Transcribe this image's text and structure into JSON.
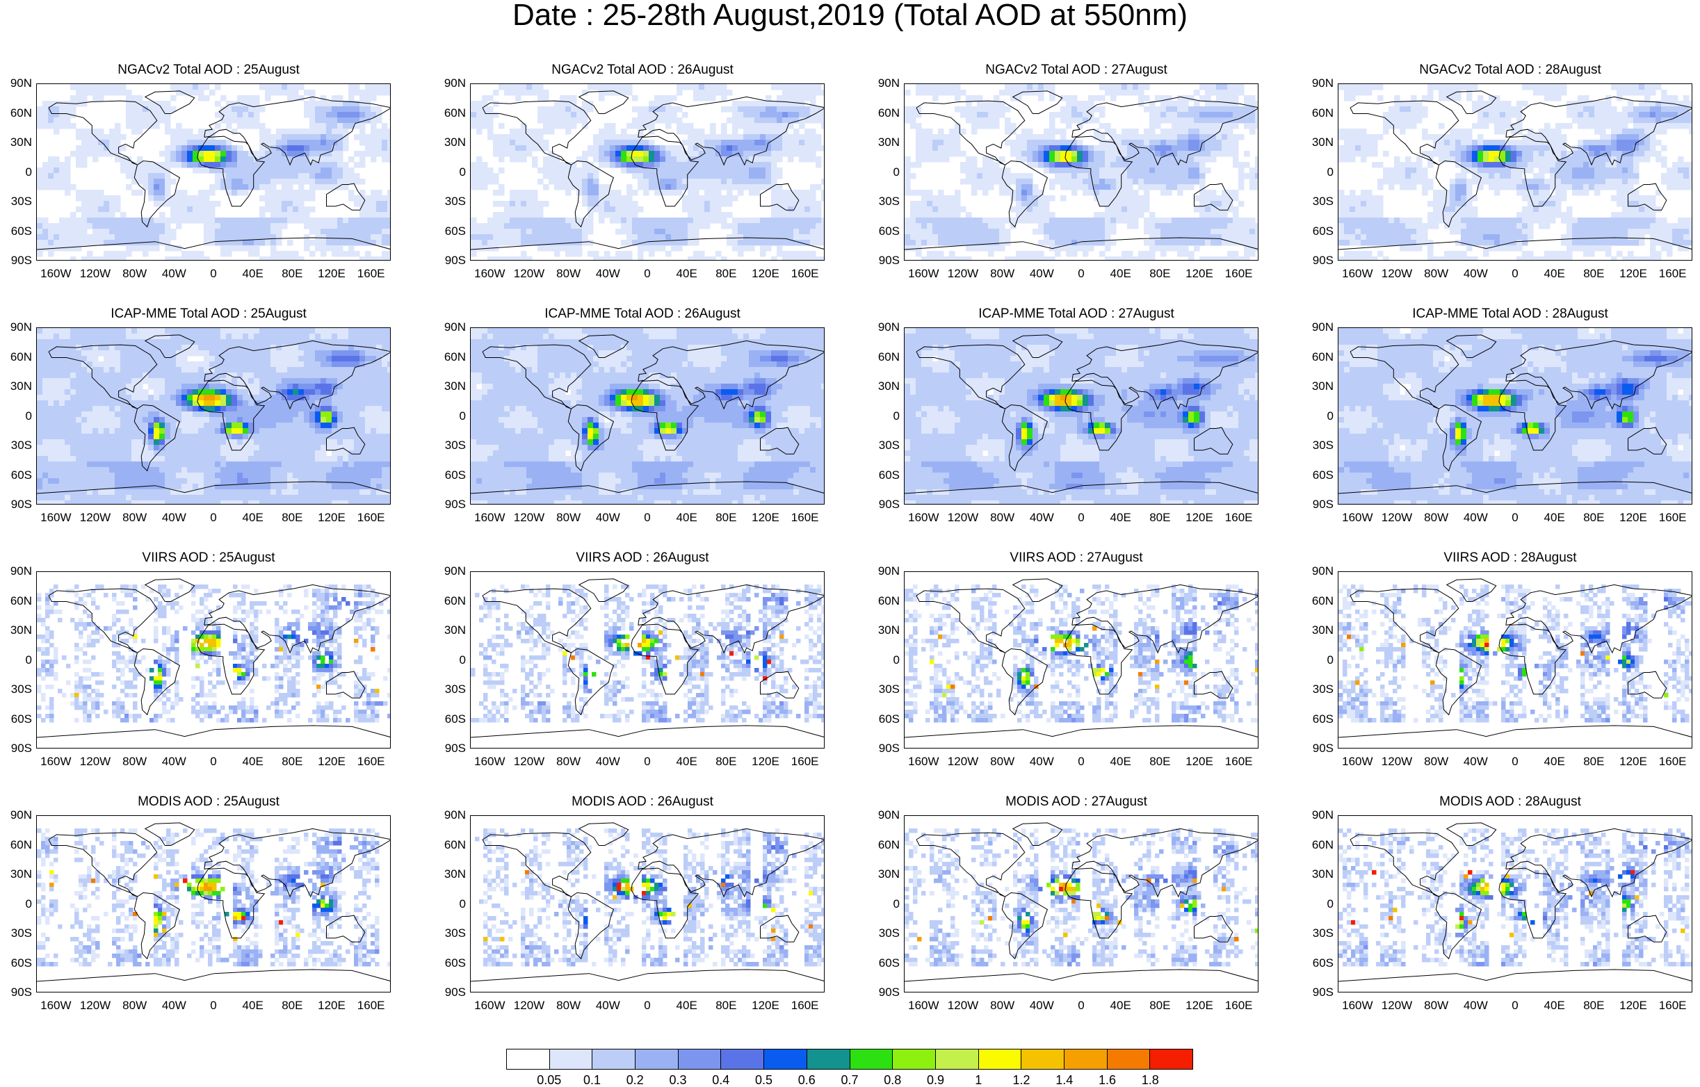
{
  "title": "Date : 25-28th August,2019 (Total AOD at 550nm)",
  "lat_labels": [
    "90N",
    "60N",
    "30N",
    "0",
    "30S",
    "60S",
    "90S"
  ],
  "lon_labels": [
    "160W",
    "120W",
    "80W",
    "40W",
    "0",
    "40E",
    "80E",
    "120E",
    "160E"
  ],
  "panels": [
    {
      "title": "NGACv2 Total AOD : 25August",
      "kind": "model"
    },
    {
      "title": "NGACv2 Total AOD : 26August",
      "kind": "model"
    },
    {
      "title": "NGACv2 Total AOD : 27August",
      "kind": "model"
    },
    {
      "title": "NGACv2 Total AOD : 28August",
      "kind": "model"
    },
    {
      "title": "ICAP-MME Total AOD : 25August",
      "kind": "ensemble"
    },
    {
      "title": "ICAP-MME Total AOD : 26August",
      "kind": "ensemble"
    },
    {
      "title": "ICAP-MME Total AOD : 27August",
      "kind": "ensemble"
    },
    {
      "title": "ICAP-MME Total AOD : 28August",
      "kind": "ensemble"
    },
    {
      "title": "VIIRS AOD : 25August",
      "kind": "satellite"
    },
    {
      "title": "VIIRS AOD : 26August",
      "kind": "satellite"
    },
    {
      "title": "VIIRS AOD : 27August",
      "kind": "satellite"
    },
    {
      "title": "VIIRS AOD : 28August",
      "kind": "satellite"
    },
    {
      "title": "MODIS AOD : 25August",
      "kind": "satellite"
    },
    {
      "title": "MODIS AOD : 26August",
      "kind": "satellite"
    },
    {
      "title": "MODIS AOD : 27August",
      "kind": "satellite"
    },
    {
      "title": "MODIS AOD : 28August",
      "kind": "satellite"
    }
  ],
  "colorbar": {
    "colors": [
      "#ffffff",
      "#dde6fb",
      "#bccdf8",
      "#9ab2f4",
      "#7c95ef",
      "#5a74e8",
      "#0a5cf0",
      "#12938f",
      "#2ce012",
      "#8ef00e",
      "#c3f04a",
      "#fbfb00",
      "#f5c200",
      "#f5a000",
      "#f57b00",
      "#f51e00"
    ],
    "labels": [
      "0.05",
      "0.1",
      "0.2",
      "0.3",
      "0.4",
      "0.5",
      "0.6",
      "0.7",
      "0.8",
      "0.9",
      "1",
      "1.2",
      "1.4",
      "1.6",
      "1.8"
    ]
  }
}
